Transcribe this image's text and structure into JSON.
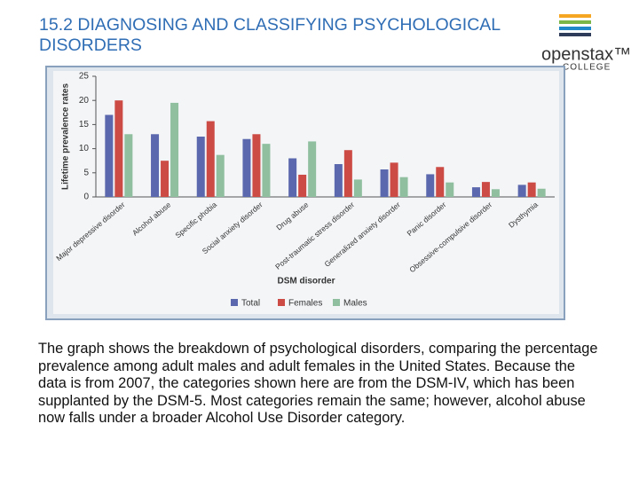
{
  "header": {
    "title": "15.2 DIAGNOSING AND CLASSIFYING PSYCHOLOGICAL DISORDERS"
  },
  "logo": {
    "name": "openstax™",
    "subname": "COLLEGE"
  },
  "chart_data": {
    "type": "bar",
    "ylabel": "Lifetime prevalence rates",
    "xlabel": "DSM disorder",
    "categories": [
      "Major depressive disorder",
      "Alcohol abuse",
      "Specific phobia",
      "Social anxiety disorder",
      "Drug abuse",
      "Post-traumatic stress disorder",
      "Generalized anxiety disorder",
      "Panic disorder",
      "Obsessive-compulsive disorder",
      "Dysthymia"
    ],
    "series": [
      {
        "name": "Total",
        "color": "#5b68ad",
        "values": [
          17,
          13,
          12.5,
          12,
          8,
          6.8,
          5.7,
          4.7,
          2,
          2.5
        ]
      },
      {
        "name": "Females",
        "color": "#cd4b45",
        "values": [
          20,
          7.5,
          15.7,
          13,
          4.6,
          9.7,
          7.1,
          6.2,
          3.1,
          3
        ]
      },
      {
        "name": "Males",
        "color": "#8fbf9f",
        "values": [
          13,
          19.5,
          8.7,
          11,
          11.5,
          3.6,
          4.1,
          3,
          1.6,
          1.7
        ]
      }
    ],
    "ylim": [
      0,
      25
    ],
    "yticks": [
      0,
      5,
      10,
      15,
      20,
      25
    ],
    "grid": false,
    "legend": "bottom"
  },
  "body": {
    "text": "The graph shows the breakdown of psychological disorders, comparing the percentage prevalence among adult males and adult females in the United States. Because the data is from 2007, the categories shown here are from the DSM-IV, which has been supplanted by the DSM-5. Most categories remain the same; however, alcohol abuse now falls under a broader Alcohol Use Disorder category."
  }
}
